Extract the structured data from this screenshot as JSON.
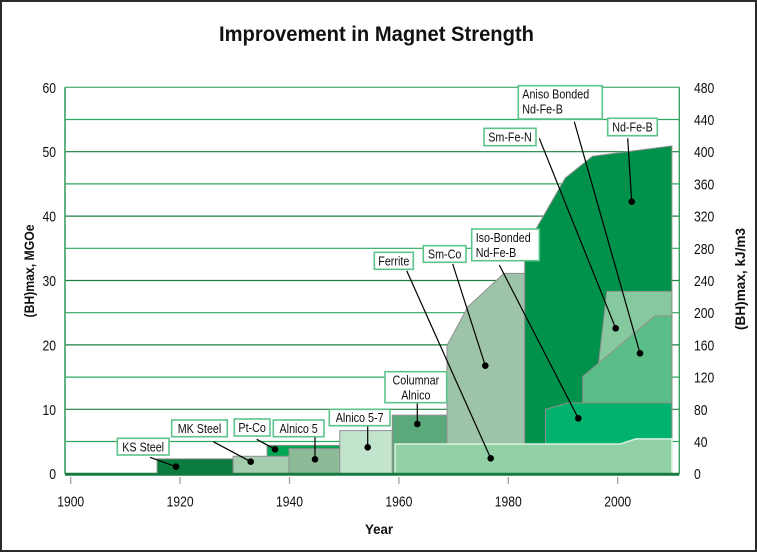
{
  "chart_data": {
    "type": "area",
    "title": "Improvement in Magnet Strength",
    "xlabel": "Year",
    "ylabel": "(BH)max, MGOe",
    "y2label": "(BH)max, kJ/m3",
    "xlim": [
      1899,
      2011.3
    ],
    "ylim": [
      0,
      60
    ],
    "y2lim": [
      0,
      480
    ],
    "xticks": [
      1900,
      1920,
      1940,
      1960,
      1980,
      2000
    ],
    "yticks": [
      0,
      10,
      20,
      30,
      40,
      50,
      60
    ],
    "y2ticks": [
      0,
      40,
      80,
      120,
      160,
      200,
      240,
      280,
      320,
      360,
      400,
      440,
      480
    ],
    "grid": true,
    "grid_step": 5,
    "legend": "none (inline callout labels)",
    "series": [
      {
        "name": "KS Steel",
        "color": "#0a7d3e",
        "points": [
          [
            1915.8,
            0
          ],
          [
            1915.8,
            2.3
          ],
          [
            1929.7,
            2.3
          ],
          [
            1929.7,
            0
          ]
        ]
      },
      {
        "name": "Pt-Co",
        "color": "#00a651",
        "points": [
          [
            1935.9,
            0
          ],
          [
            1935.9,
            4.4
          ],
          [
            1949.2,
            4.4
          ],
          [
            1949.2,
            0
          ]
        ]
      },
      {
        "name": "MK Steel",
        "color": "#a6ccb0",
        "points": [
          [
            1929.7,
            0
          ],
          [
            1929.7,
            2.7
          ],
          [
            1939.9,
            2.7
          ],
          [
            1939.9,
            0
          ]
        ]
      },
      {
        "name": "Alnico 5",
        "color": "#8dbb98",
        "points": [
          [
            1939.9,
            0
          ],
          [
            1939.9,
            3.9
          ],
          [
            1949.2,
            3.9
          ],
          [
            1949.2,
            0
          ]
        ]
      },
      {
        "name": "Alnico 5-7",
        "color": "#c3e4cc",
        "points": [
          [
            1949.2,
            0
          ],
          [
            1949.2,
            6.7
          ],
          [
            1958.8,
            6.7
          ],
          [
            1958.8,
            0
          ]
        ]
      },
      {
        "name": "Columnar Alnico",
        "color": "#5aa97b",
        "points": [
          [
            1958.8,
            0
          ],
          [
            1958.8,
            9.1
          ],
          [
            1968.8,
            9.1
          ],
          [
            1968.8,
            0
          ]
        ]
      },
      {
        "name": "Sm-Co",
        "color": "#9dc3a8",
        "points": [
          [
            1968.8,
            0
          ],
          [
            1968.8,
            19.9
          ],
          [
            1972.6,
            25.9
          ],
          [
            1979.2,
            31.1
          ],
          [
            1983,
            31.1
          ],
          [
            1983,
            0
          ]
        ]
      },
      {
        "name": "Nd-Fe-B",
        "color": "#00924a",
        "points": [
          [
            1983,
            0
          ],
          [
            1983,
            35
          ],
          [
            1985.2,
            38.2
          ],
          [
            1990.4,
            45.9
          ],
          [
            1995.4,
            49.3
          ],
          [
            2009.9,
            50.9
          ],
          [
            2009.9,
            0
          ]
        ]
      },
      {
        "name": "Sm-Fe-N",
        "color": "#86c99e",
        "points": [
          [
            1994.2,
            0
          ],
          [
            1998,
            28.3
          ],
          [
            2009.9,
            28.3
          ],
          [
            2009.9,
            0
          ]
        ]
      },
      {
        "name": "Aniso Bonded Nd-Fe-B",
        "color": "#5bbd88",
        "points": [
          [
            1993.6,
            0
          ],
          [
            1993.6,
            15.1
          ],
          [
            2006.8,
            24.5
          ],
          [
            2009.9,
            24.5
          ],
          [
            2009.9,
            0
          ]
        ]
      },
      {
        "name": "Iso-Bonded Nd-Fe-B",
        "color": "#00b26b",
        "points": [
          [
            1986.8,
            0
          ],
          [
            1986.8,
            10
          ],
          [
            1991,
            11
          ],
          [
            2009.9,
            11
          ],
          [
            2009.9,
            0
          ]
        ]
      },
      {
        "name": "Ferrite",
        "color": "#92d0a6",
        "points": [
          [
            1959.3,
            0
          ],
          [
            1959.3,
            4.6
          ],
          [
            2000.4,
            4.6
          ],
          [
            2003.3,
            5.4
          ],
          [
            2009.9,
            5.4
          ],
          [
            2009.9,
            0
          ]
        ]
      }
    ],
    "annotations": [
      {
        "series": "KS Steel",
        "lines": [
          "KS Steel"
        ]
      },
      {
        "series": "MK Steel",
        "lines": [
          "MK Steel"
        ]
      },
      {
        "series": "Pt-Co",
        "lines": [
          "Pt-Co"
        ]
      },
      {
        "series": "Alnico 5",
        "lines": [
          "Alnico 5"
        ]
      },
      {
        "series": "Alnico 5-7",
        "lines": [
          "Alnico 5-7"
        ]
      },
      {
        "series": "Columnar Alnico",
        "lines": [
          "Columnar",
          "Alnico"
        ]
      },
      {
        "series": "Ferrite",
        "lines": [
          "Ferrite"
        ]
      },
      {
        "series": "Sm-Co",
        "lines": [
          "Sm-Co"
        ]
      },
      {
        "series": "Iso-Bonded Nd-Fe-B",
        "lines": [
          "Iso-Bonded",
          "Nd-Fe-B"
        ]
      },
      {
        "series": "Sm-Fe-N",
        "lines": [
          "Sm-Fe-N"
        ]
      },
      {
        "series": "Aniso Bonded Nd-Fe-B",
        "lines": [
          "Aniso Bonded",
          "Nd-Fe-B"
        ]
      },
      {
        "series": "Nd-Fe-B",
        "lines": [
          "Nd-Fe-B"
        ]
      }
    ],
    "colors": {
      "grid_major": "#1b7f44",
      "grid_minor": "#2da85f",
      "baseline": "#157a3d",
      "label_border": "#5cc48a"
    }
  }
}
